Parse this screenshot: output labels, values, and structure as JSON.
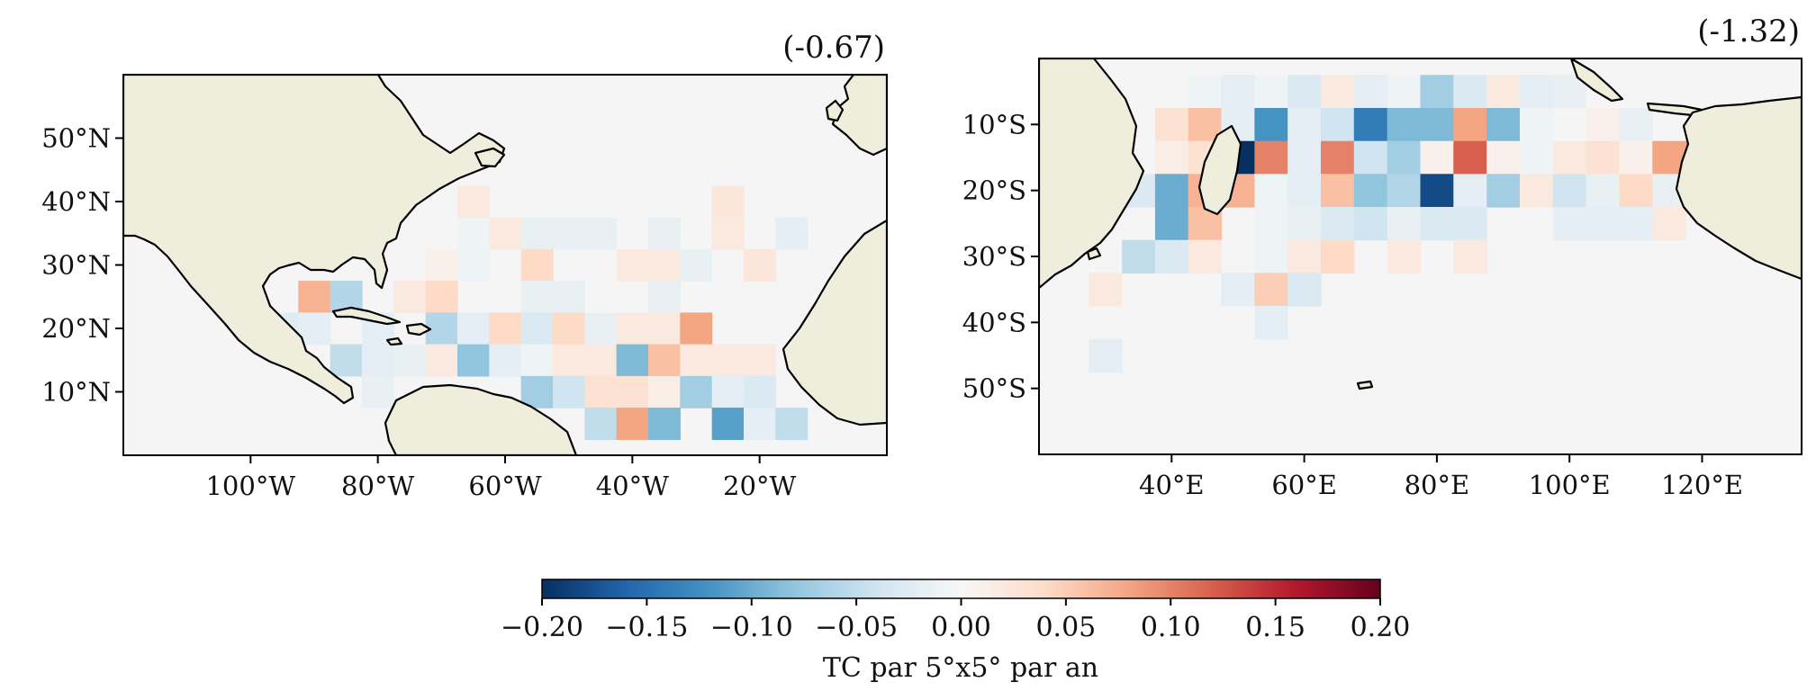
{
  "chart_data": [
    {
      "type": "heatmap",
      "title": "(-0.67)",
      "xlabel": "",
      "ylabel": "",
      "region": "North Atlantic",
      "xlim": [
        -120,
        0
      ],
      "ylim": [
        0,
        60
      ],
      "x_ticks": [
        -100,
        -80,
        -60,
        -40,
        -20
      ],
      "x_tick_labels": [
        "100°W",
        "80°W",
        "60°W",
        "40°W",
        "20°W"
      ],
      "y_ticks": [
        10,
        20,
        30,
        40,
        50
      ],
      "y_tick_labels": [
        "10°N",
        "20°N",
        "30°N",
        "40°N",
        "50°N"
      ],
      "grid": false,
      "cell_size_deg": 5,
      "cells": [
        {
          "lon": -65,
          "lat": 40,
          "v": 0.02
        },
        {
          "lon": -65,
          "lat": 35,
          "v": -0.01
        },
        {
          "lon": -60,
          "lat": 35,
          "v": 0.02
        },
        {
          "lon": -55,
          "lat": 35,
          "v": -0.015
        },
        {
          "lon": -50,
          "lat": 35,
          "v": -0.015
        },
        {
          "lon": -45,
          "lat": 35,
          "v": -0.015
        },
        {
          "lon": -35,
          "lat": 35,
          "v": -0.015
        },
        {
          "lon": -25,
          "lat": 40,
          "v": 0.025
        },
        {
          "lon": -25,
          "lat": 35,
          "v": 0.02
        },
        {
          "lon": -15,
          "lat": 35,
          "v": -0.02
        },
        {
          "lon": -70,
          "lat": 30,
          "v": 0.01
        },
        {
          "lon": -65,
          "lat": 30,
          "v": -0.01
        },
        {
          "lon": -55,
          "lat": 30,
          "v": 0.04
        },
        {
          "lon": -40,
          "lat": 30,
          "v": 0.02
        },
        {
          "lon": -35,
          "lat": 30,
          "v": 0.02
        },
        {
          "lon": -30,
          "lat": 30,
          "v": -0.015
        },
        {
          "lon": -20,
          "lat": 30,
          "v": 0.025
        },
        {
          "lon": -90,
          "lat": 25,
          "v": 0.07
        },
        {
          "lon": -85,
          "lat": 25,
          "v": -0.06
        },
        {
          "lon": -75,
          "lat": 25,
          "v": 0.02
        },
        {
          "lon": -70,
          "lat": 25,
          "v": 0.04
        },
        {
          "lon": -55,
          "lat": 25,
          "v": -0.015
        },
        {
          "lon": -50,
          "lat": 25,
          "v": -0.015
        },
        {
          "lon": -35,
          "lat": 25,
          "v": -0.015
        },
        {
          "lon": -95,
          "lat": 20,
          "v": -0.025
        },
        {
          "lon": -90,
          "lat": 20,
          "v": -0.02
        },
        {
          "lon": -80,
          "lat": 20,
          "v": -0.02
        },
        {
          "lon": -70,
          "lat": 20,
          "v": -0.06
        },
        {
          "lon": -65,
          "lat": 20,
          "v": -0.02
        },
        {
          "lon": -60,
          "lat": 20,
          "v": 0.04
        },
        {
          "lon": -55,
          "lat": 20,
          "v": -0.03
        },
        {
          "lon": -50,
          "lat": 20,
          "v": 0.04
        },
        {
          "lon": -45,
          "lat": 20,
          "v": -0.015
        },
        {
          "lon": -40,
          "lat": 20,
          "v": 0.02
        },
        {
          "lon": -35,
          "lat": 20,
          "v": 0.02
        },
        {
          "lon": -30,
          "lat": 20,
          "v": 0.08
        },
        {
          "lon": -85,
          "lat": 15,
          "v": -0.05
        },
        {
          "lon": -80,
          "lat": 15,
          "v": -0.02
        },
        {
          "lon": -75,
          "lat": 15,
          "v": -0.015
        },
        {
          "lon": -70,
          "lat": 15,
          "v": 0.02
        },
        {
          "lon": -65,
          "lat": 15,
          "v": -0.08
        },
        {
          "lon": -60,
          "lat": 15,
          "v": -0.02
        },
        {
          "lon": -55,
          "lat": 15,
          "v": -0.01
        },
        {
          "lon": -50,
          "lat": 15,
          "v": 0.02
        },
        {
          "lon": -45,
          "lat": 15,
          "v": 0.02
        },
        {
          "lon": -40,
          "lat": 15,
          "v": -0.09
        },
        {
          "lon": -35,
          "lat": 15,
          "v": 0.06
        },
        {
          "lon": -30,
          "lat": 15,
          "v": 0.02
        },
        {
          "lon": -25,
          "lat": 15,
          "v": 0.02
        },
        {
          "lon": -20,
          "lat": 15,
          "v": 0.02
        },
        {
          "lon": -80,
          "lat": 10,
          "v": -0.015
        },
        {
          "lon": -55,
          "lat": 10,
          "v": -0.07
        },
        {
          "lon": -50,
          "lat": 10,
          "v": -0.04
        },
        {
          "lon": -45,
          "lat": 10,
          "v": 0.03
        },
        {
          "lon": -40,
          "lat": 10,
          "v": 0.03
        },
        {
          "lon": -35,
          "lat": 10,
          "v": 0.015
        },
        {
          "lon": -30,
          "lat": 10,
          "v": -0.07
        },
        {
          "lon": -25,
          "lat": 10,
          "v": -0.02
        },
        {
          "lon": -20,
          "lat": 10,
          "v": -0.03
        },
        {
          "lon": -45,
          "lat": 5,
          "v": -0.05
        },
        {
          "lon": -40,
          "lat": 5,
          "v": 0.08
        },
        {
          "lon": -35,
          "lat": 5,
          "v": -0.09
        },
        {
          "lon": -25,
          "lat": 5,
          "v": -0.11
        },
        {
          "lon": -20,
          "lat": 5,
          "v": -0.02
        },
        {
          "lon": -15,
          "lat": 5,
          "v": -0.05
        }
      ]
    },
    {
      "type": "heatmap",
      "title": "(-1.32)",
      "xlabel": "",
      "ylabel": "",
      "region": "South Indian Ocean",
      "xlim": [
        20,
        135
      ],
      "ylim": [
        -60,
        0
      ],
      "x_ticks": [
        40,
        60,
        80,
        100,
        120
      ],
      "x_tick_labels": [
        "40°E",
        "60°E",
        "80°E",
        "100°E",
        "120°E"
      ],
      "y_ticks": [
        -10,
        -20,
        -30,
        -40,
        -50
      ],
      "y_tick_labels": [
        "10°S",
        "20°S",
        "30°S",
        "40°S",
        "50°S"
      ],
      "grid": false,
      "cell_size_deg": 5,
      "cells": [
        {
          "lon": 45,
          "lat": -5,
          "v": -0.01
        },
        {
          "lon": 50,
          "lat": -5,
          "v": -0.02
        },
        {
          "lon": 55,
          "lat": -5,
          "v": -0.01
        },
        {
          "lon": 60,
          "lat": -5,
          "v": -0.03
        },
        {
          "lon": 65,
          "lat": -5,
          "v": 0.02
        },
        {
          "lon": 70,
          "lat": -5,
          "v": -0.02
        },
        {
          "lon": 75,
          "lat": -5,
          "v": -0.01
        },
        {
          "lon": 80,
          "lat": -5,
          "v": -0.07
        },
        {
          "lon": 85,
          "lat": -5,
          "v": -0.03
        },
        {
          "lon": 90,
          "lat": -5,
          "v": 0.02
        },
        {
          "lon": 95,
          "lat": -5,
          "v": -0.02
        },
        {
          "lon": 100,
          "lat": -5,
          "v": -0.015
        },
        {
          "lon": 40,
          "lat": -10,
          "v": 0.03
        },
        {
          "lon": 45,
          "lat": -10,
          "v": 0.06
        },
        {
          "lon": 50,
          "lat": -10,
          "v": -0.02
        },
        {
          "lon": 55,
          "lat": -10,
          "v": -0.12
        },
        {
          "lon": 60,
          "lat": -10,
          "v": -0.02
        },
        {
          "lon": 65,
          "lat": -10,
          "v": -0.04
        },
        {
          "lon": 70,
          "lat": -10,
          "v": -0.14
        },
        {
          "lon": 75,
          "lat": -10,
          "v": -0.09
        },
        {
          "lon": 80,
          "lat": -10,
          "v": -0.09
        },
        {
          "lon": 85,
          "lat": -10,
          "v": 0.08
        },
        {
          "lon": 90,
          "lat": -10,
          "v": -0.09
        },
        {
          "lon": 95,
          "lat": -10,
          "v": -0.01
        },
        {
          "lon": 105,
          "lat": -10,
          "v": 0.01
        },
        {
          "lon": 110,
          "lat": -10,
          "v": -0.015
        },
        {
          "lon": 125,
          "lat": -10,
          "v": -0.06
        },
        {
          "lon": 130,
          "lat": -10,
          "v": 0.04
        },
        {
          "lon": 40,
          "lat": -15,
          "v": 0.015
        },
        {
          "lon": 45,
          "lat": -15,
          "v": 0.03
        },
        {
          "lon": 50,
          "lat": -15,
          "v": -0.2
        },
        {
          "lon": 55,
          "lat": -15,
          "v": 0.1
        },
        {
          "lon": 60,
          "lat": -15,
          "v": -0.02
        },
        {
          "lon": 65,
          "lat": -15,
          "v": 0.1
        },
        {
          "lon": 70,
          "lat": -15,
          "v": -0.04
        },
        {
          "lon": 75,
          "lat": -15,
          "v": -0.07
        },
        {
          "lon": 80,
          "lat": -15,
          "v": 0.01
        },
        {
          "lon": 85,
          "lat": -15,
          "v": 0.12
        },
        {
          "lon": 90,
          "lat": -15,
          "v": 0.01
        },
        {
          "lon": 95,
          "lat": -15,
          "v": -0.01
        },
        {
          "lon": 100,
          "lat": -15,
          "v": 0.02
        },
        {
          "lon": 105,
          "lat": -15,
          "v": 0.03
        },
        {
          "lon": 110,
          "lat": -15,
          "v": 0.01
        },
        {
          "lon": 115,
          "lat": -15,
          "v": 0.08
        },
        {
          "lon": 120,
          "lat": -15,
          "v": 0.08
        },
        {
          "lon": 125,
          "lat": -15,
          "v": -0.11
        },
        {
          "lon": 35,
          "lat": -20,
          "v": -0.03
        },
        {
          "lon": 40,
          "lat": -20,
          "v": -0.1
        },
        {
          "lon": 45,
          "lat": -20,
          "v": 0.07
        },
        {
          "lon": 50,
          "lat": -20,
          "v": 0.07
        },
        {
          "lon": 55,
          "lat": -20,
          "v": -0.01
        },
        {
          "lon": 60,
          "lat": -20,
          "v": -0.02
        },
        {
          "lon": 65,
          "lat": -20,
          "v": 0.06
        },
        {
          "lon": 70,
          "lat": -20,
          "v": -0.08
        },
        {
          "lon": 75,
          "lat": -20,
          "v": -0.06
        },
        {
          "lon": 80,
          "lat": -20,
          "v": -0.18
        },
        {
          "lon": 85,
          "lat": -20,
          "v": -0.02
        },
        {
          "lon": 90,
          "lat": -20,
          "v": -0.07
        },
        {
          "lon": 95,
          "lat": -20,
          "v": 0.02
        },
        {
          "lon": 100,
          "lat": -20,
          "v": -0.04
        },
        {
          "lon": 105,
          "lat": -20,
          "v": -0.015
        },
        {
          "lon": 110,
          "lat": -20,
          "v": 0.04
        },
        {
          "lon": 115,
          "lat": -20,
          "v": -0.015
        },
        {
          "lon": 120,
          "lat": -20,
          "v": 0.1
        },
        {
          "lon": 125,
          "lat": -20,
          "v": 0.11
        },
        {
          "lon": 40,
          "lat": -25,
          "v": -0.1
        },
        {
          "lon": 45,
          "lat": -25,
          "v": 0.06
        },
        {
          "lon": 55,
          "lat": -25,
          "v": -0.01
        },
        {
          "lon": 60,
          "lat": -25,
          "v": -0.015
        },
        {
          "lon": 65,
          "lat": -25,
          "v": -0.03
        },
        {
          "lon": 70,
          "lat": -25,
          "v": -0.04
        },
        {
          "lon": 75,
          "lat": -25,
          "v": -0.015
        },
        {
          "lon": 80,
          "lat": -25,
          "v": -0.03
        },
        {
          "lon": 85,
          "lat": -25,
          "v": -0.03
        },
        {
          "lon": 100,
          "lat": -25,
          "v": -0.02
        },
        {
          "lon": 105,
          "lat": -25,
          "v": -0.02
        },
        {
          "lon": 110,
          "lat": -25,
          "v": -0.02
        },
        {
          "lon": 115,
          "lat": -25,
          "v": 0.02
        },
        {
          "lon": 35,
          "lat": -30,
          "v": -0.05
        },
        {
          "lon": 40,
          "lat": -30,
          "v": -0.03
        },
        {
          "lon": 45,
          "lat": -30,
          "v": 0.02
        },
        {
          "lon": 55,
          "lat": -30,
          "v": -0.01
        },
        {
          "lon": 60,
          "lat": -30,
          "v": 0.02
        },
        {
          "lon": 65,
          "lat": -30,
          "v": 0.04
        },
        {
          "lon": 75,
          "lat": -30,
          "v": 0.02
        },
        {
          "lon": 85,
          "lat": -30,
          "v": 0.02
        },
        {
          "lon": 30,
          "lat": -35,
          "v": 0.02
        },
        {
          "lon": 50,
          "lat": -35,
          "v": -0.02
        },
        {
          "lon": 55,
          "lat": -35,
          "v": 0.05
        },
        {
          "lon": 60,
          "lat": -35,
          "v": -0.03
        },
        {
          "lon": 55,
          "lat": -40,
          "v": -0.02
        },
        {
          "lon": 30,
          "lat": -45,
          "v": -0.02
        }
      ]
    }
  ],
  "colorbar": {
    "colormap": "RdBu_r",
    "vmin": -0.2,
    "vmax": 0.2,
    "ticks": [
      -0.2,
      -0.15,
      -0.1,
      -0.05,
      0.0,
      0.05,
      0.1,
      0.15,
      0.2
    ],
    "tick_labels": [
      "−0.20",
      "−0.15",
      "−0.10",
      "−0.05",
      "0.00",
      "0.05",
      "0.10",
      "0.15",
      "0.20"
    ],
    "label": "TC par 5°x5° par an"
  },
  "colors": {
    "land": "#efeedc",
    "ocean_background": "#f5f5f5",
    "coastline": "#000000"
  }
}
